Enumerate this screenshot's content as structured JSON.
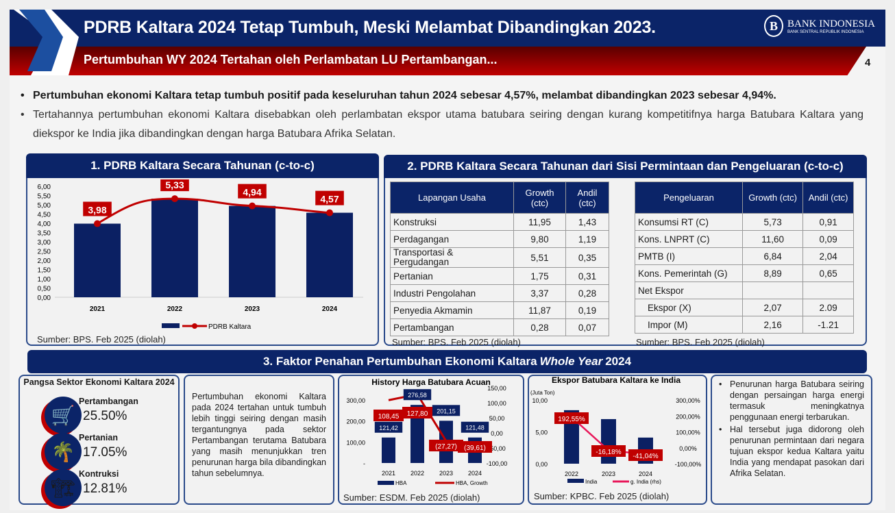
{
  "header": {
    "title": "PDRB Kaltara 2024 Tetap Tumbuh, Meski Melambat Dibandingkan 2023.",
    "subtitle": "Pertumbuhan WY 2024 Tertahan oleh Perlambatan LU Pertambangan...",
    "page": "4",
    "logo_name": "BANK INDONESIA",
    "logo_tagline": "BANK SENTRAL REPUBLIK INDONESIA",
    "logo_mark": "B"
  },
  "bullets": [
    "Pertumbuhan ekonomi Kaltara tetap tumbuh positif pada keseluruhan tahun 2024 sebesar 4,57%, melambat dibandingkan 2023 sebesar 4,94%.",
    "Tertahannya pertumbuhan ekonomi Kaltara disebabkan oleh perlambatan ekspor utama batubara seiring dengan kurang kompetitifnya harga Batubara Kaltara yang diekspor ke India jika dibandingkan dengan harga Batubara Afrika Selatan."
  ],
  "section1": {
    "title": "1. PDRB Kaltara Secara Tahunan (c-to-c)",
    "source": "Sumber: BPS. Feb 2025 (diolah)"
  },
  "section2": {
    "title": "2. PDRB Kaltara Secara Tahunan dari Sisi Permintaan dan Pengeluaran (c-to-c)",
    "left_table": {
      "headers": [
        "Lapangan Usaha",
        "Growth (ctc)",
        "Andil (ctc)"
      ],
      "rows": [
        [
          "Konstruksi",
          "11,95",
          "1,43"
        ],
        [
          "Perdagangan",
          "9,80",
          "1,19"
        ],
        [
          "Transportasi & Pergudangan",
          "5,51",
          "0,35"
        ],
        [
          "Pertanian",
          "1,75",
          "0,31"
        ],
        [
          "Industri Pengolahan",
          "3,37",
          "0,28"
        ],
        [
          "Penyedia Akmamin",
          "11,87",
          "0,19"
        ],
        [
          "Pertambangan",
          "0,28",
          "0,07"
        ]
      ]
    },
    "right_table": {
      "headers": [
        "Pengeluaran",
        "Growth (ctc)",
        "Andil (ctc)"
      ],
      "rows": [
        [
          "Konsumsi RT (C)",
          "5,73",
          "0,91"
        ],
        [
          "Kons. LNPRT (C)",
          "11,60",
          "0,09"
        ],
        [
          "PMTB (I)",
          "6,84",
          "2,04"
        ],
        [
          "Kons. Pemerintah (G)",
          "8,89",
          "0,65"
        ],
        [
          "Net Ekspor",
          "",
          ""
        ],
        [
          "Ekspor (X)",
          "2,07",
          "2.09"
        ],
        [
          "Impor (M)",
          "2,16",
          "-1.21"
        ]
      ]
    },
    "source_left": "Sumber: BPS. Feb 2025 (diolah)",
    "source_right": "Sumber: BPS. Feb 2025 (diolah)"
  },
  "section3": {
    "title_prefix": "3. Faktor Penahan Pertumbuhan Ekonomi Kaltara ",
    "title_em": "Whole Year",
    "title_suffix": " 2024",
    "share": {
      "title": "Pangsa Sektor Ekonomi Kaltara 2024",
      "items": [
        {
          "label": "Pertambangan",
          "value": "25.50%",
          "icon": "coal-cart-icon"
        },
        {
          "label": "Pertanian",
          "value": "17.05%",
          "icon": "palm-tree-icon"
        },
        {
          "label": "Kontruksi",
          "value": "12.81%",
          "icon": "crane-icon"
        }
      ]
    },
    "narrative": "Pertumbuhan ekonomi Kaltara pada 2024 tertahan untuk tumbuh lebih tinggi seiring dengan masih tergantungnya pada sektor Pertambangan terutama Batubara yang masih menunjukkan tren penurunan harga bila dibandingkan tahun sebelumnya.",
    "hba_source": "Sumber: ESDM. Feb 2025 (diolah)",
    "india_source": "Sumber: KPBC. Feb 2025 (diolah)",
    "notes": [
      "Penurunan harga Batubara seiring dengan persaingan harga energi termasuk meningkatnya penggunaan energi terbarukan.",
      "Hal tersebut juga didorong oleh penurunan permintaan dari negara tujuan ekspor kedua Kaltara yaitu India yang mendapat pasokan dari Afrika Selatan."
    ]
  },
  "chart_data": [
    {
      "type": "bar",
      "title": "",
      "categories": [
        "2021",
        "2022",
        "2023",
        "2024"
      ],
      "series": [
        {
          "name": "",
          "kind": "bar",
          "values": [
            3.98,
            5.33,
            4.94,
            4.57
          ]
        },
        {
          "name": "PDRB Kaltara",
          "kind": "line",
          "values": [
            3.98,
            5.33,
            4.94,
            4.57
          ]
        }
      ],
      "data_labels": [
        "3,98",
        "5,33",
        "4,94",
        "4,57"
      ],
      "yticks": [
        "0,00",
        "0,50",
        "1,00",
        "1,50",
        "2,00",
        "2,50",
        "3,00",
        "3,50",
        "4,00",
        "4,50",
        "5,00",
        "5,50",
        "6,00"
      ],
      "ylim": [
        0,
        6
      ],
      "legend": "bottom"
    },
    {
      "type": "bar",
      "title": "History Harga Batubara Acuan",
      "categories": [
        "2021",
        "2022",
        "2023",
        "2024"
      ],
      "series": [
        {
          "name": "HBA",
          "kind": "bar",
          "values": [
            121.42,
            276.58,
            201.15,
            121.48
          ],
          "labels": [
            "121,42",
            "276,58",
            "201,15",
            "121,48"
          ]
        },
        {
          "name": "HBA, Growth",
          "kind": "line",
          "axis": "right",
          "values": [
            108.45,
            127.8,
            -27.27,
            -39.61
          ],
          "labels": [
            "108,45",
            "127,80",
            "(27,27)",
            "(39,61)"
          ]
        }
      ],
      "yticks": [
        "-",
        "100,00",
        "200,00",
        "300,00"
      ],
      "ylim": [
        0,
        300
      ],
      "y2ticks": [
        "-100,00",
        "-50,00",
        "0,00",
        "50,00",
        "100,00",
        "150,00"
      ],
      "y2lim": [
        -100,
        150
      ],
      "legend": "bottom"
    },
    {
      "type": "bar",
      "title": "Ekspor Batubara Kaltara ke India",
      "ylabel": "(Juta Ton)",
      "categories": [
        "2022",
        "2023",
        "2024"
      ],
      "series": [
        {
          "name": "India",
          "kind": "bar",
          "values": [
            8.4,
            7.0,
            4.1
          ]
        },
        {
          "name": "g. India (rhs)",
          "kind": "line",
          "axis": "right",
          "values": [
            192.55,
            -16.18,
            -41.04
          ],
          "labels": [
            "192,55%",
            "-16,18%",
            "-41,04%"
          ]
        }
      ],
      "yticks": [
        "0,00",
        "5,00",
        "10,00"
      ],
      "ylim": [
        0,
        10
      ],
      "y2ticks": [
        "-100,00%",
        "0,00%",
        "100,00%",
        "200,00%",
        "300,00%"
      ],
      "y2lim": [
        -100,
        300
      ],
      "legend": "bottom"
    }
  ]
}
